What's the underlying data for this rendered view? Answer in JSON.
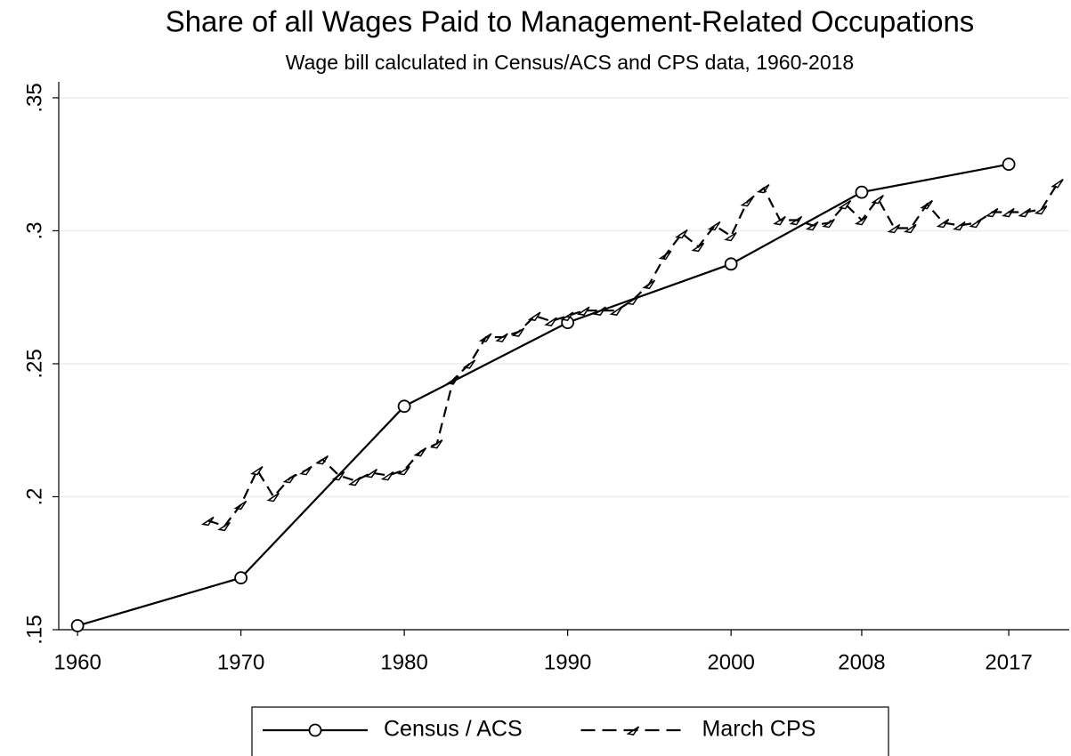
{
  "chart_data": {
    "type": "line",
    "title": "Share of all Wages Paid to Management-Related Occupations",
    "subtitle": "Wage bill calculated in Census/ACS and CPS data, 1960-2018",
    "xlim": [
      1958.85,
      2020.7
    ],
    "xticks": [
      1960,
      1970,
      1980,
      1990,
      2000,
      2008,
      2017
    ],
    "ylim": [
      0.15,
      0.356
    ],
    "yticks": [
      {
        "value": 0.15,
        "label": ".15"
      },
      {
        "value": 0.2,
        "label": ".2"
      },
      {
        "value": 0.25,
        "label": ".25"
      },
      {
        "value": 0.3,
        "label": ".3"
      },
      {
        "value": 0.35,
        "label": ".35"
      }
    ],
    "grid": true,
    "legend": "bottom",
    "series": [
      {
        "name": "Census / ACS",
        "color": "#000000",
        "style": "solid",
        "marker": "circle",
        "x": [
          1960,
          1970,
          1980,
          1990,
          2000,
          2008,
          2017
        ],
        "values": [
          0.1515,
          0.1695,
          0.234,
          0.2655,
          0.2875,
          0.3145,
          0.325
        ]
      },
      {
        "name": "March CPS",
        "color": "#000000",
        "style": "dashed",
        "marker": "triangle",
        "x": [
          1968,
          1969,
          1970,
          1971,
          1972,
          1973,
          1974,
          1975,
          1976,
          1977,
          1978,
          1979,
          1980,
          1981,
          1982,
          1983,
          1984,
          1985,
          1986,
          1987,
          1988,
          1989,
          1990,
          1991,
          1992,
          1993,
          1994,
          1995,
          1996,
          1997,
          1998,
          1999,
          2000,
          2001,
          2002,
          2003,
          2004,
          2005,
          2006,
          2007,
          2008,
          2009,
          2010,
          2011,
          2012,
          2013,
          2014,
          2015,
          2016,
          2017,
          2018,
          2019,
          2020
        ],
        "values": [
          0.191,
          0.189,
          0.197,
          0.21,
          0.2,
          0.207,
          0.21,
          0.214,
          0.208,
          0.206,
          0.209,
          0.208,
          0.21,
          0.217,
          0.22,
          0.244,
          0.25,
          0.26,
          0.26,
          0.262,
          0.268,
          0.266,
          0.268,
          0.27,
          0.27,
          0.27,
          0.274,
          0.28,
          0.291,
          0.299,
          0.294,
          0.302,
          0.298,
          0.311,
          0.316,
          0.304,
          0.304,
          0.302,
          0.303,
          0.31,
          0.304,
          0.312,
          0.301,
          0.301,
          0.31,
          0.303,
          0.302,
          0.303,
          0.307,
          0.307,
          0.307,
          0.308,
          0.318
        ]
      }
    ]
  }
}
